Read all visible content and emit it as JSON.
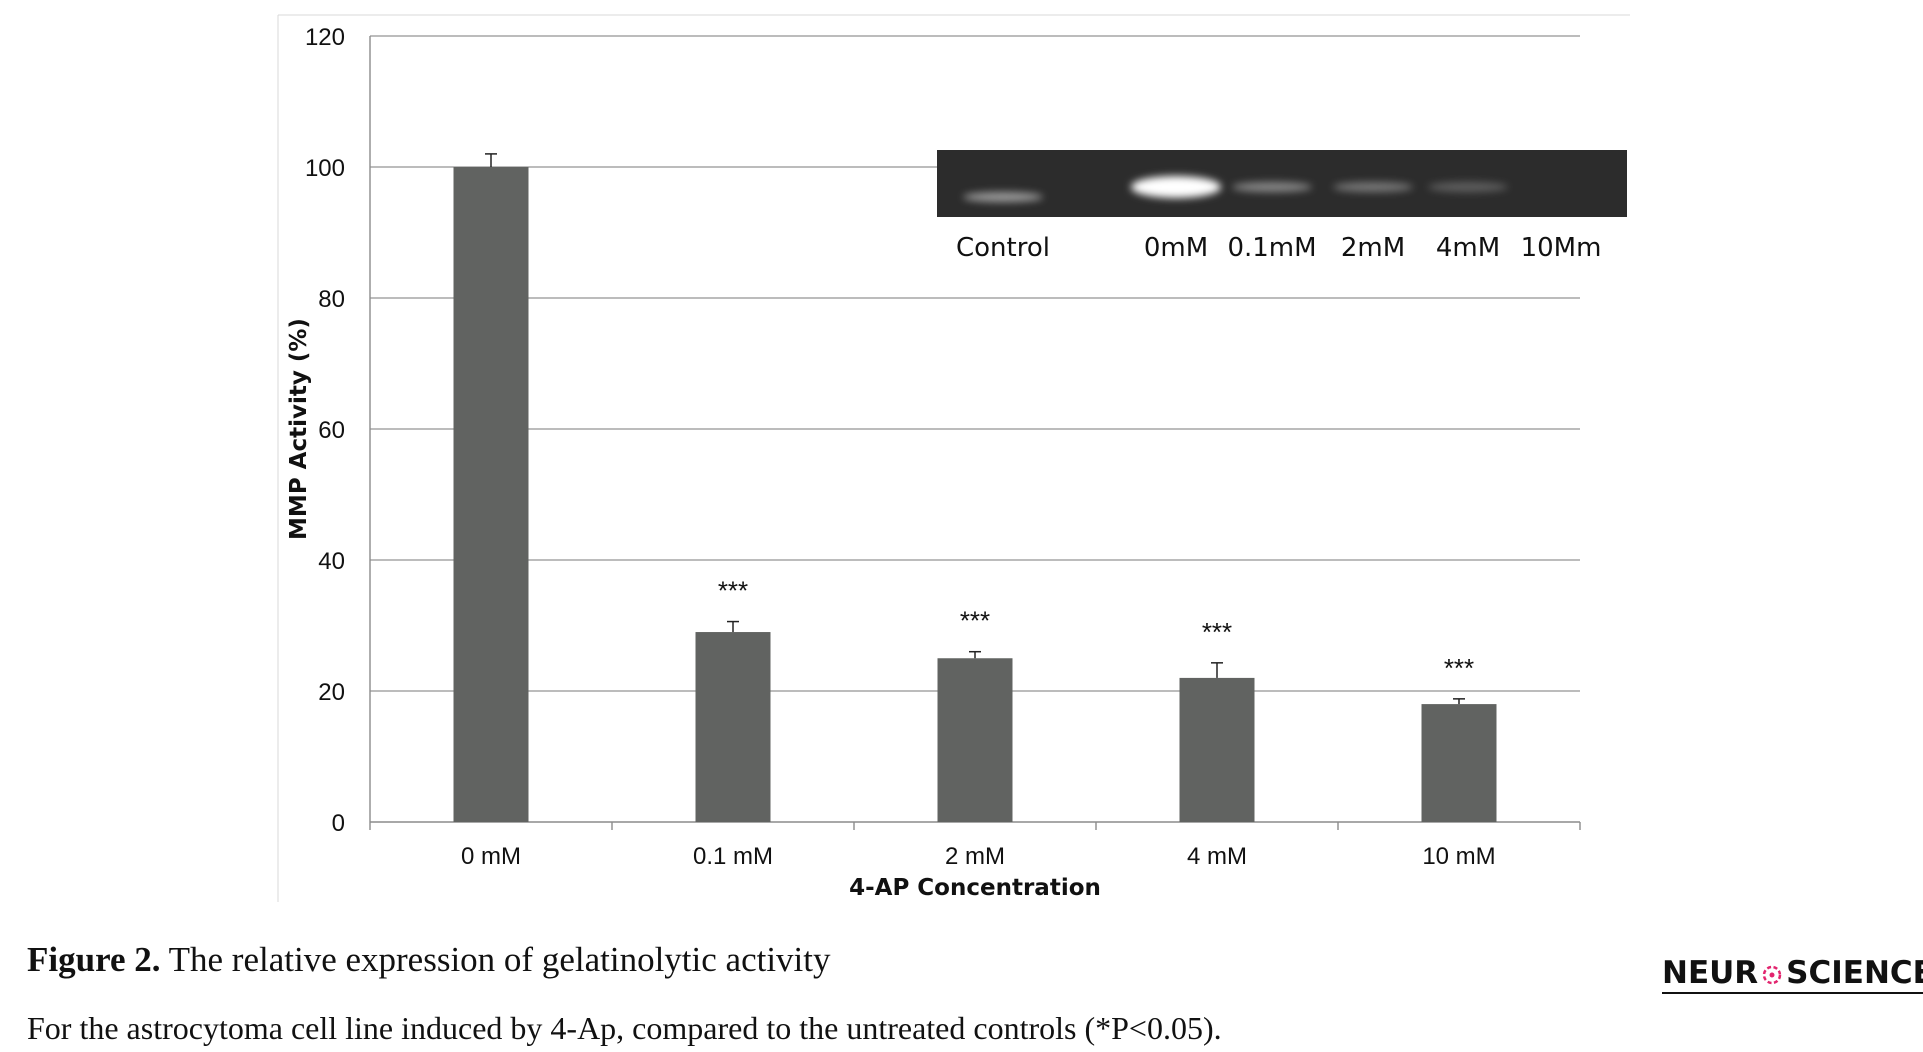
{
  "chart_data": {
    "type": "bar",
    "categories": [
      "0 mM",
      "0.1 mM",
      "2 mM",
      "4 mM",
      "10 mM"
    ],
    "values": [
      100,
      29,
      25,
      22,
      18
    ],
    "errors": [
      2,
      1.6,
      1,
      2.3,
      0.8
    ],
    "significance": [
      "",
      "***",
      "***",
      "***",
      "***"
    ],
    "xlabel": "4-AP Concentration",
    "ylabel": "MMP Activity (%)",
    "ylim": [
      0,
      120
    ],
    "yticks": [
      0,
      20,
      40,
      60,
      80,
      100,
      120
    ],
    "grid": true,
    "bar_color": "#616361",
    "inset": {
      "type": "gel image",
      "lane_labels": [
        "Control",
        "0mM",
        "0.1mM",
        "2mM",
        "4mM",
        "10Mm"
      ],
      "band_intensities": [
        0.55,
        1.0,
        0.45,
        0.35,
        0.18,
        0.0
      ]
    }
  },
  "caption": {
    "figure_label": "Figure 2.",
    "title": "The relative expression of gelatinolytic activity",
    "body": "For the astrocytoma cell line induced by 4-Ap, compared to the untreated controls (*P<0.05)."
  },
  "logo": {
    "text_left": "NEUR",
    "text_right": "SCIENCE",
    "accent_color": "#e2246e"
  }
}
